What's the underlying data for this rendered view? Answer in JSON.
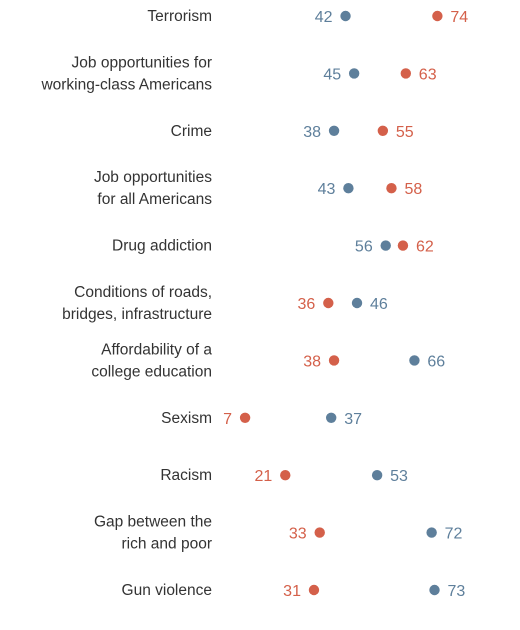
{
  "chart_data": {
    "type": "dot-plot",
    "title": "",
    "xlabel": "",
    "ylabel": "",
    "xlim": [
      0,
      100
    ],
    "grid": false,
    "legend": "none",
    "series": [
      {
        "name": "",
        "color": "#d4604a",
        "values": [
          74,
          63,
          55,
          58,
          62,
          36,
          38,
          7,
          21,
          33,
          31
        ]
      },
      {
        "name": "",
        "color": "#5e7f9b",
        "values": [
          42,
          45,
          38,
          43,
          56,
          46,
          66,
          37,
          53,
          72,
          73
        ]
      }
    ],
    "categories": [
      [
        "Terrorism"
      ],
      [
        "Job opportunities for",
        "working-class Americans"
      ],
      [
        "Crime"
      ],
      [
        "Job opportunities",
        "for all Americans"
      ],
      [
        "Drug addiction"
      ],
      [
        "Conditions of roads,",
        "bridges, infrastructure"
      ],
      [
        "Affordability of a",
        "college education"
      ],
      [
        "Sexism"
      ],
      [
        "Racism"
      ],
      [
        "Gap between the",
        "rich and poor"
      ],
      [
        "Gun violence"
      ]
    ]
  }
}
